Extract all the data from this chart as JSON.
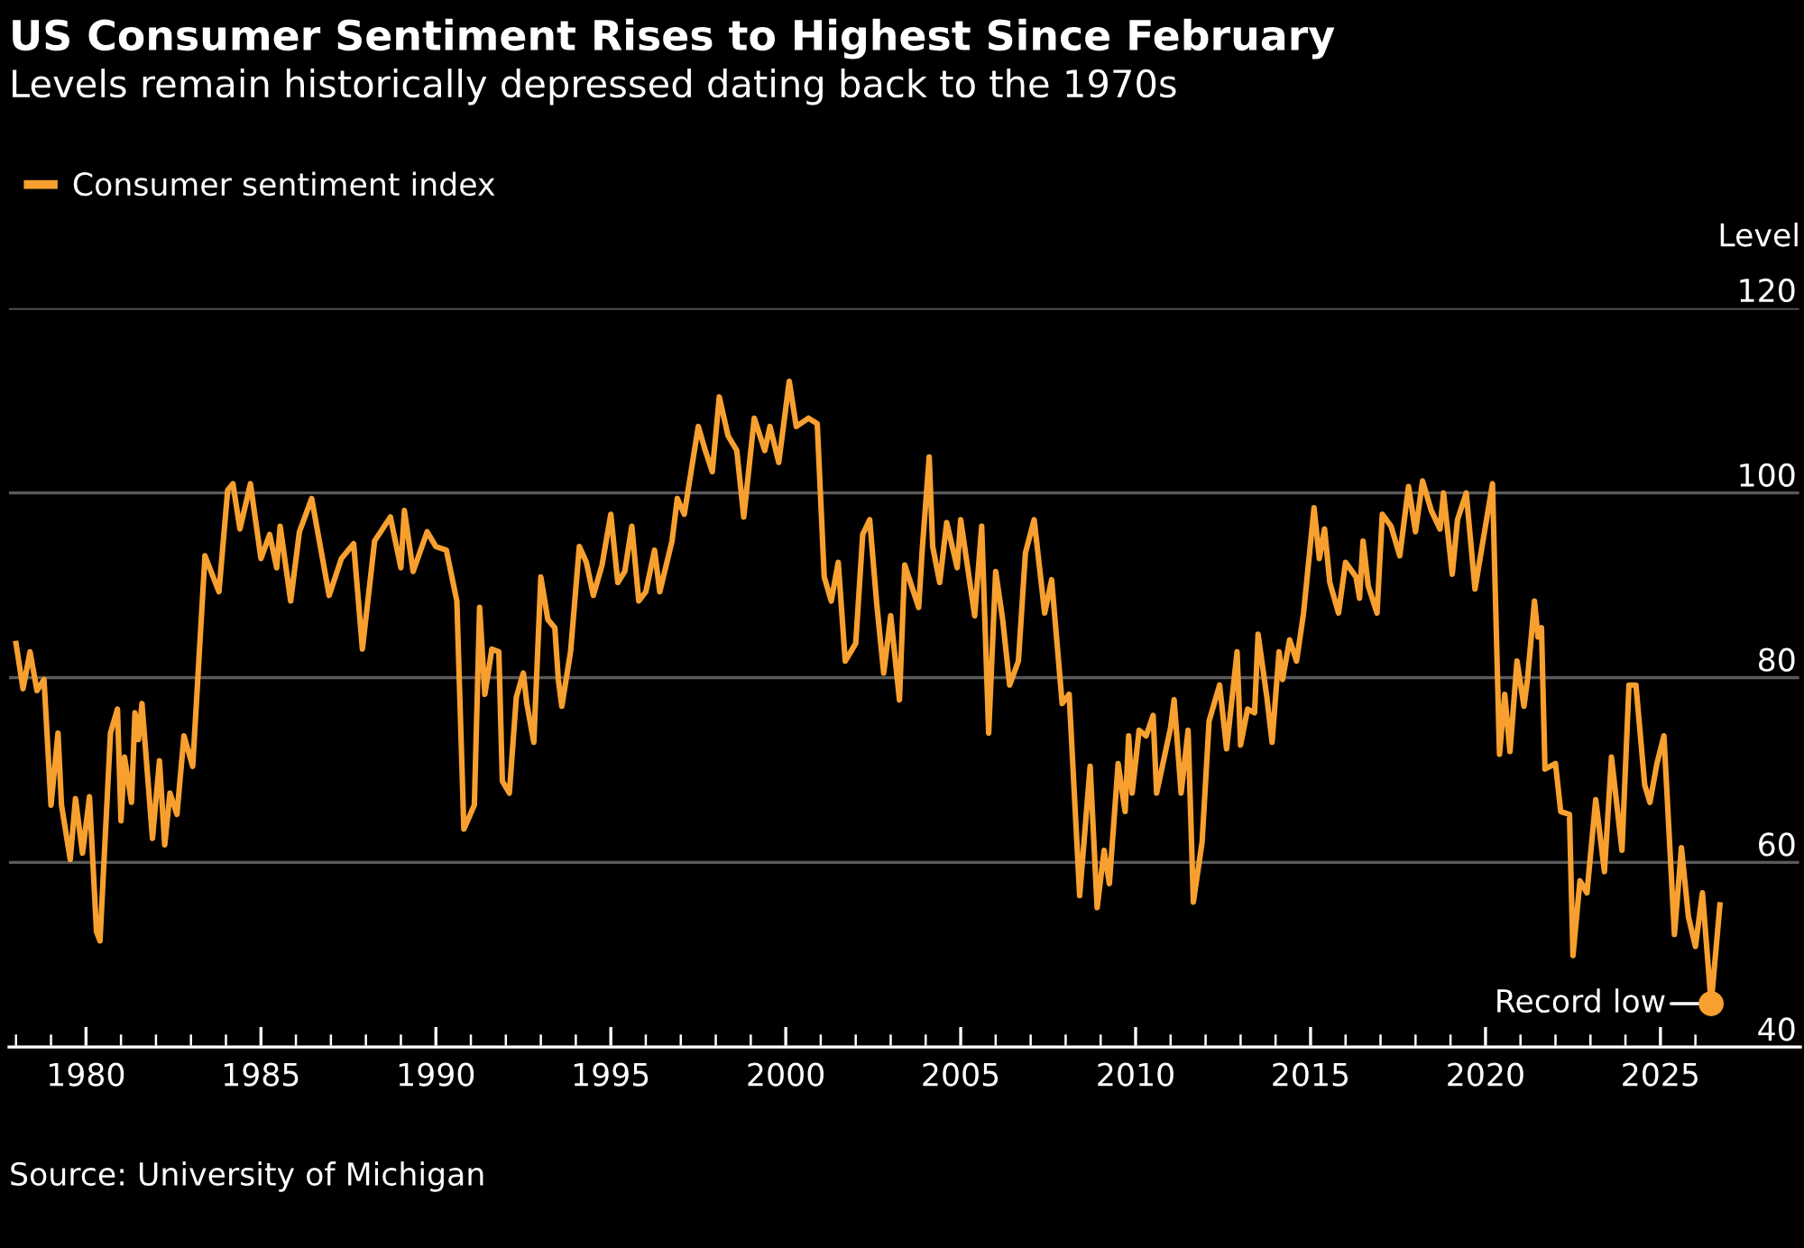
{
  "chart_data": {
    "type": "line",
    "title": "US Consumer Sentiment Rises to Highest Since February",
    "subtitle": "Levels remain historically depressed dating back to the 1970s",
    "ylabel": "Level",
    "legend": "top left",
    "grid": "y",
    "marker": "none",
    "line_style": "solid",
    "xlim": [
      1977.8,
      2029.0
    ],
    "ylim": [
      40,
      120
    ],
    "yticks": [
      40,
      60,
      80,
      100,
      120
    ],
    "xticks": [
      {
        "value": 1978,
        "label": null
      },
      {
        "value": 1979,
        "label": null
      },
      1980,
      {
        "value": 1981,
        "label": null
      },
      {
        "value": 1982,
        "label": null
      },
      {
        "value": 1983,
        "label": null
      },
      {
        "value": 1984,
        "label": null
      },
      1985,
      {
        "value": 1986,
        "label": null
      },
      {
        "value": 1987,
        "label": null
      },
      {
        "value": 1988,
        "label": null
      },
      {
        "value": 1989,
        "label": null
      },
      1990,
      {
        "value": 1991,
        "label": null
      },
      {
        "value": 1992,
        "label": null
      },
      {
        "value": 1993,
        "label": null
      },
      {
        "value": 1994,
        "label": null
      },
      1995,
      {
        "value": 1996,
        "label": null
      },
      {
        "value": 1997,
        "label": null
      },
      {
        "value": 1998,
        "label": null
      },
      {
        "value": 1999,
        "label": null
      },
      2000,
      {
        "value": 2001,
        "label": null
      },
      {
        "value": 2002,
        "label": null
      },
      {
        "value": 2003,
        "label": null
      },
      {
        "value": 2004,
        "label": null
      },
      2005,
      {
        "value": 2006,
        "label": null
      },
      {
        "value": 2007,
        "label": null
      },
      {
        "value": 2008,
        "label": null
      },
      {
        "value": 2009,
        "label": null
      },
      2010,
      {
        "value": 2011,
        "label": null
      },
      {
        "value": 2012,
        "label": null
      },
      {
        "value": 2013,
        "label": null
      },
      {
        "value": 2014,
        "label": null
      },
      2015,
      {
        "value": 2016,
        "label": null
      },
      {
        "value": 2017,
        "label": null
      },
      {
        "value": 2018,
        "label": null
      },
      {
        "value": 2019,
        "label": null
      },
      2020,
      {
        "value": 2021,
        "label": null
      },
      {
        "value": 2022,
        "label": null
      },
      {
        "value": 2023,
        "label": null
      },
      {
        "value": 2024,
        "label": null
      },
      2025,
      {
        "value": 2026,
        "label": null
      }
    ],
    "annotations": [
      {
        "text": "Record low",
        "x": 2026.45,
        "y": 44.7
      },
      "Source: University of Michigan"
    ],
    "series": [
      {
        "name": "Consumer sentiment index",
        "color": "#f7a030",
        "x": [
          1978.0,
          1978.2,
          1978.4,
          1978.6,
          1978.8,
          1979.0,
          1979.2,
          1979.3,
          1979.55,
          1979.7,
          1979.9,
          1980.1,
          1980.3,
          1980.4,
          1980.7,
          1980.9,
          1981.0,
          1981.1,
          1981.3,
          1981.4,
          1981.5,
          1981.6,
          1981.9,
          1982.1,
          1982.25,
          1982.4,
          1982.6,
          1982.8,
          1983.05,
          1983.4,
          1983.8,
          1984.05,
          1984.2,
          1984.4,
          1984.7,
          1985.0,
          1985.25,
          1985.45,
          1985.55,
          1985.85,
          1986.1,
          1986.45,
          1986.95,
          1987.3,
          1987.65,
          1987.9,
          1988.25,
          1988.7,
          1989.0,
          1989.1,
          1989.35,
          1989.75,
          1990.0,
          1990.3,
          1990.6,
          1990.8,
          1991.1,
          1991.25,
          1991.4,
          1991.6,
          1991.8,
          1991.9,
          1992.1,
          1992.3,
          1992.5,
          1992.6,
          1992.8,
          1993.0,
          1993.2,
          1993.4,
          1993.5,
          1993.6,
          1993.85,
          1994.1,
          1994.3,
          1994.5,
          1994.75,
          1995.0,
          1995.2,
          1995.4,
          1995.6,
          1995.8,
          1996.0,
          1996.25,
          1996.4,
          1996.75,
          1996.9,
          1997.1,
          1997.5,
          1997.7,
          1997.9,
          1998.1,
          1998.35,
          1998.6,
          1998.8,
          1999.1,
          1999.4,
          1999.55,
          1999.8,
          2000.1,
          2000.3,
          2000.65,
          2000.9,
          2001.1,
          2001.3,
          2001.5,
          2001.7,
          2002.0,
          2002.2,
          2002.4,
          2002.6,
          2002.8,
          2003.0,
          2003.25,
          2003.4,
          2003.8,
          2003.9,
          2004.1,
          2004.2,
          2004.4,
          2004.6,
          2004.9,
          2005.0,
          2005.4,
          2005.6,
          2005.8,
          2006.0,
          2006.2,
          2006.4,
          2006.65,
          2006.85,
          2007.1,
          2007.4,
          2007.6,
          2007.9,
          2008.1,
          2008.4,
          2008.7,
          2008.9,
          2009.1,
          2009.25,
          2009.5,
          2009.7,
          2009.8,
          2009.9,
          2010.1,
          2010.3,
          2010.5,
          2010.6,
          2011.0,
          2011.1,
          2011.3,
          2011.5,
          2011.65,
          2011.9,
          2012.1,
          2012.4,
          2012.6,
          2012.9,
          2013.0,
          2013.2,
          2013.4,
          2013.5,
          2013.75,
          2013.9,
          2014.1,
          2014.2,
          2014.4,
          2014.6,
          2014.8,
          2015.1,
          2015.25,
          2015.4,
          2015.55,
          2015.8,
          2016.0,
          2016.3,
          2016.4,
          2016.5,
          2016.65,
          2016.9,
          2017.05,
          2017.3,
          2017.55,
          2017.8,
          2018.0,
          2018.2,
          2018.45,
          2018.7,
          2018.8,
          2019.05,
          2019.2,
          2019.45,
          2019.7,
          2020.2,
          2020.4,
          2020.55,
          2020.7,
          2020.9,
          2021.1,
          2021.2,
          2021.4,
          2021.5,
          2021.6,
          2021.7,
          2022.0,
          2022.15,
          2022.4,
          2022.5,
          2022.7,
          2022.9,
          2023.15,
          2023.4,
          2023.6,
          2023.9,
          2024.1,
          2024.3,
          2024.55,
          2024.7,
          2024.9,
          2025.1,
          2025.4,
          2025.6,
          2025.8,
          2026.0,
          2026.2,
          2026.45,
          2026.7
        ],
        "values": [
          83.7,
          78.8,
          82.8,
          78.6,
          79.8,
          66.2,
          74.0,
          66.2,
          60.3,
          66.9,
          61.0,
          67.1,
          52.5,
          51.5,
          74.0,
          76.6,
          64.5,
          71.4,
          66.5,
          76.2,
          73.3,
          77.2,
          62.6,
          71.0,
          61.9,
          67.5,
          65.2,
          73.7,
          70.4,
          93.2,
          89.3,
          100.3,
          101.0,
          96.1,
          101.0,
          92.9,
          95.5,
          91.9,
          96.4,
          88.3,
          95.8,
          99.4,
          88.9,
          92.9,
          94.5,
          83.1,
          94.8,
          97.4,
          91.9,
          98.1,
          91.5,
          95.8,
          94.2,
          93.8,
          88.3,
          63.6,
          66.2,
          87.6,
          78.2,
          83.1,
          82.8,
          68.8,
          67.5,
          77.9,
          80.5,
          77.2,
          73.0,
          90.9,
          86.3,
          85.4,
          79.8,
          76.9,
          82.8,
          94.2,
          92.5,
          88.9,
          92.2,
          97.7,
          90.3,
          91.5,
          96.4,
          88.3,
          89.3,
          93.8,
          89.3,
          94.8,
          99.4,
          97.7,
          107.2,
          104.6,
          102.3,
          110.4,
          106.2,
          104.6,
          97.4,
          108.1,
          104.6,
          107.2,
          103.3,
          112.1,
          107.2,
          108.1,
          107.5,
          90.9,
          88.3,
          92.5,
          81.8,
          83.7,
          95.5,
          97.1,
          88.0,
          80.5,
          86.7,
          77.6,
          92.2,
          87.6,
          93.8,
          103.9,
          94.2,
          90.3,
          96.8,
          91.9,
          97.1,
          86.7,
          96.4,
          74.0,
          91.5,
          86.3,
          79.2,
          81.8,
          93.5,
          97.1,
          87.0,
          90.6,
          77.2,
          78.2,
          56.4,
          70.4,
          55.1,
          61.3,
          57.7,
          70.7,
          65.5,
          73.7,
          67.5,
          74.3,
          73.7,
          75.9,
          67.5,
          74.6,
          77.6,
          67.5,
          74.3,
          55.7,
          62.2,
          75.3,
          79.2,
          72.3,
          82.8,
          72.7,
          76.6,
          76.2,
          84.7,
          77.9,
          73.0,
          82.8,
          79.8,
          84.1,
          81.8,
          87.0,
          98.4,
          92.9,
          96.1,
          90.3,
          87.0,
          92.5,
          90.9,
          88.6,
          94.8,
          89.9,
          87.0,
          97.7,
          96.4,
          93.2,
          100.7,
          95.8,
          101.3,
          98.1,
          96.1,
          100.0,
          91.2,
          97.1,
          100.0,
          89.6,
          101.0,
          71.7,
          78.2,
          72.0,
          81.8,
          76.9,
          79.8,
          88.3,
          84.4,
          85.4,
          70.1,
          70.7,
          65.5,
          65.2,
          49.9,
          58.0,
          56.7,
          66.8,
          59.0,
          71.4,
          61.3,
          79.2,
          79.2,
          68.4,
          66.5,
          70.7,
          73.7,
          52.2,
          61.6,
          54.1,
          50.9,
          56.7,
          44.7,
          55.4
        ]
      }
    ]
  }
}
